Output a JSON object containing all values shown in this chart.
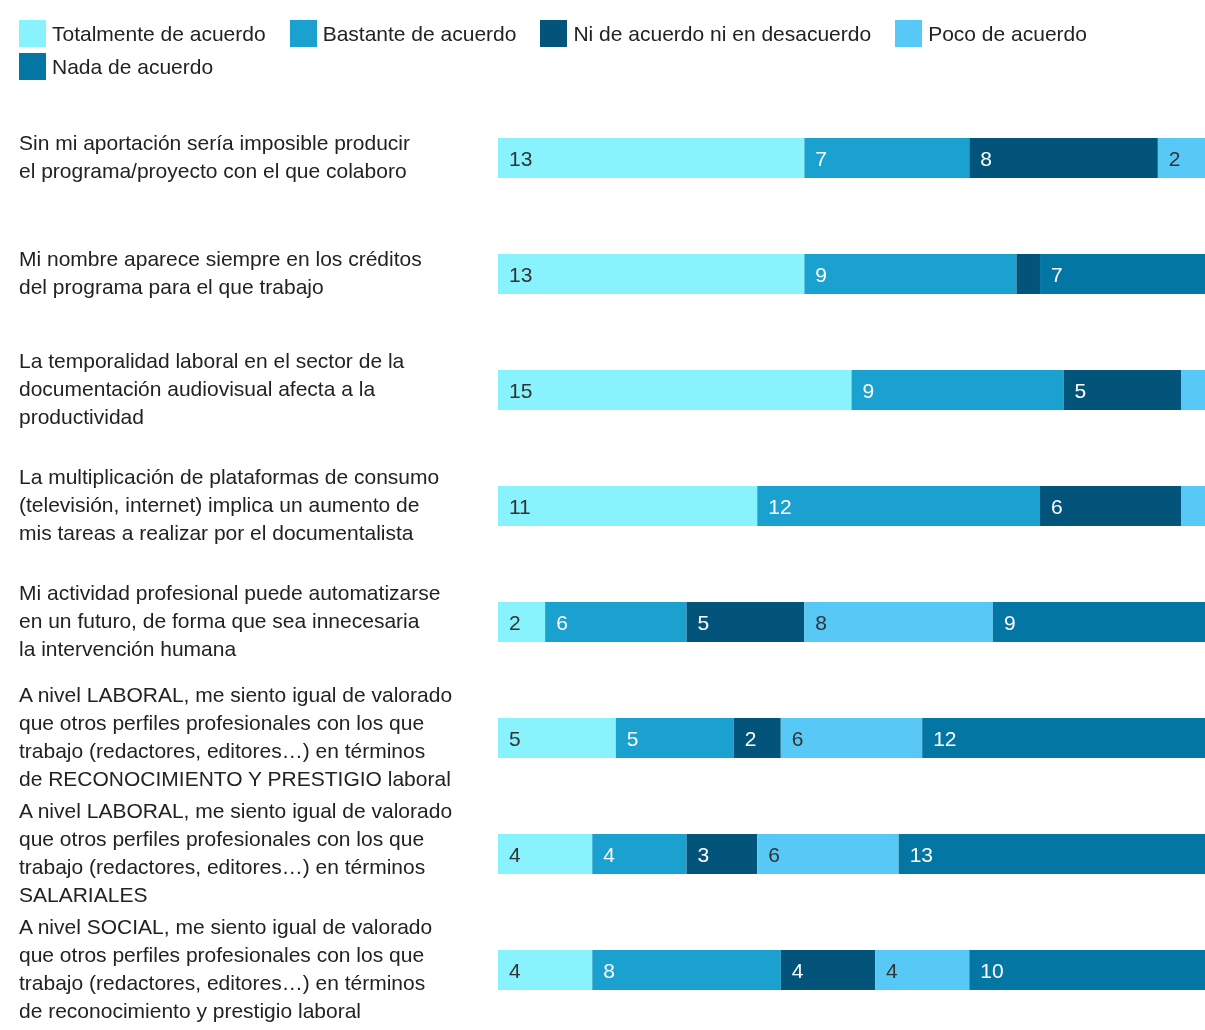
{
  "chart_data": {
    "type": "bar",
    "orientation": "horizontal",
    "stacked": true,
    "legend": "top left",
    "tick_labels": "y",
    "xlim": [
      0,
      30
    ],
    "categories": [
      "Sin mi aportación sería imposible producir el programa/proyecto con el que colaboro",
      "Mi nombre aparece siempre en los créditos del programa para el que trabajo",
      "La temporalidad laboral en el sector de la documentación audiovisual afecta a la productividad",
      "La multiplicación de plataformas de consumo (televisión, internet) implica un aumento de mis tareas a realizar por el documentalista",
      "Mi actividad profesional puede automatizarse en un futuro, de forma que sea innecesaria la intervención humana",
      "A nivel LABORAL, me siento igual de valorado que otros perfiles profesionales con los que trabajo (redactores, editores…) en términos de RECONOCIMIENTO Y PRESTIGIO laboral",
      "A nivel LABORAL, me siento igual de valorado que otros perfiles profesionales con los que trabajo (redactores, editores…) en términos SALARIALES",
      "A nivel SOCIAL, me siento igual de valorado que otros perfiles profesionales con los que trabajo (redactores, editores…) en términos de reconocimiento y prestigio laboral"
    ],
    "series": [
      {
        "name": "Totalmente de acuerdo",
        "color": "#88f3fd",
        "values": [
          13,
          13,
          15,
          11,
          2,
          5,
          4,
          4
        ],
        "value_labels": [
          "13",
          "13",
          "15",
          "11",
          "2",
          "5",
          "4",
          "4"
        ]
      },
      {
        "name": "Bastante de acuerdo",
        "color": "#1aa1cf",
        "values": [
          7,
          9,
          9,
          12,
          6,
          5,
          4,
          8
        ],
        "value_labels": [
          "7",
          "9",
          "9",
          "12",
          "6",
          "5",
          "4",
          "8"
        ]
      },
      {
        "name": "Ni de acuerdo ni en desacuerdo",
        "color": "#03547b",
        "values": [
          8,
          1,
          5,
          6,
          5,
          2,
          3,
          4
        ],
        "value_labels": [
          "8",
          null,
          "5",
          "6",
          "5",
          "2",
          "3",
          "4"
        ]
      },
      {
        "name": "Poco de acuerdo",
        "color": "#58c8f6",
        "values": [
          2,
          0,
          1,
          1,
          8,
          6,
          6,
          4
        ],
        "value_labels": [
          "2",
          null,
          null,
          null,
          "8",
          "6",
          "6",
          "4"
        ]
      },
      {
        "name": "Nada de acuerdo",
        "color": "#0376a3",
        "values": [
          0,
          7,
          0,
          0,
          9,
          12,
          13,
          10
        ],
        "value_labels": [
          null,
          "7",
          null,
          null,
          "9",
          "12",
          "13",
          "10"
        ]
      }
    ]
  }
}
